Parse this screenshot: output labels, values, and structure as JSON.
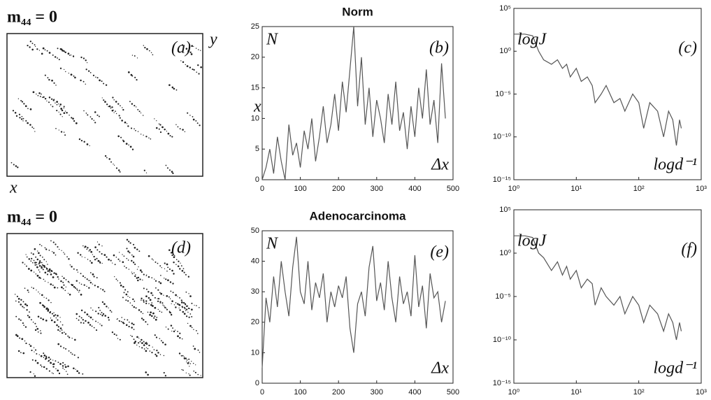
{
  "chart_data": [
    {
      "type": "image",
      "title": "m₄₄ = 0",
      "panel_label": "(a)",
      "x_label": "x",
      "y_label": "y"
    },
    {
      "type": "line",
      "title": "Norm",
      "panel_label": "(b)",
      "y_label": "N",
      "x_label": "Δx",
      "annotation": "x",
      "color": "#555555",
      "x": [
        0,
        10,
        20,
        30,
        40,
        50,
        60,
        70,
        80,
        90,
        100,
        110,
        120,
        130,
        140,
        150,
        160,
        170,
        180,
        190,
        200,
        210,
        220,
        230,
        240,
        250,
        260,
        270,
        280,
        290,
        300,
        310,
        320,
        330,
        340,
        350,
        360,
        370,
        380,
        390,
        400,
        410,
        420,
        430,
        440,
        450,
        460,
        470,
        480
      ],
      "values": [
        0,
        2,
        5,
        1,
        7,
        3,
        0,
        9,
        4,
        6,
        2,
        8,
        5,
        10,
        3,
        7,
        12,
        6,
        9,
        14,
        8,
        16,
        11,
        18,
        25,
        12,
        20,
        9,
        15,
        7,
        13,
        10,
        6,
        14,
        9,
        16,
        8,
        11,
        5,
        12,
        7,
        15,
        10,
        18,
        9,
        13,
        6,
        19,
        10
      ],
      "xlim": [
        0,
        500
      ],
      "xticks": [
        0,
        100,
        200,
        300,
        400,
        500
      ],
      "ylim": [
        0,
        25
      ],
      "yticks": [
        0,
        5,
        10,
        15,
        20,
        25
      ]
    },
    {
      "type": "line",
      "yscale": "log",
      "xscale": "log",
      "panel_label": "(c)",
      "y_label": "logJ",
      "x_label": "logd⁻¹",
      "color": "#555555",
      "x": [
        1,
        1.5,
        2,
        2.5,
        3,
        4,
        5,
        6,
        7,
        8,
        10,
        12,
        15,
        18,
        20,
        25,
        30,
        40,
        50,
        60,
        80,
        100,
        120,
        150,
        200,
        250,
        300,
        350,
        400,
        450,
        480
      ],
      "values": [
        100,
        100,
        63,
        1,
        0.1,
        0.03,
        0.1,
        0.01,
        0.03,
        0.001,
        0.01,
        0.0003,
        0.001,
        0.0001,
        1e-06,
        1e-05,
        0.0001,
        1e-06,
        3e-06,
        1e-07,
        1e-05,
        1e-06,
        1e-09,
        1e-06,
        1e-07,
        1e-10,
        1e-07,
        1e-08,
        1e-11,
        1e-08,
        1e-09
      ],
      "xlim": [
        1,
        1000
      ],
      "xticks": [
        {
          "value": 1,
          "label": "10⁰"
        },
        {
          "value": 10,
          "label": "10¹"
        },
        {
          "value": 100,
          "label": "10²"
        },
        {
          "value": 1000,
          "label": "10³"
        }
      ],
      "ylim": [
        1e-15,
        100000.0
      ],
      "yticks": [
        {
          "value": 100000.0,
          "label": "10⁵"
        },
        {
          "value": 1,
          "label": "10⁰"
        },
        {
          "value": 1e-05,
          "label": "10⁻⁵"
        },
        {
          "value": 1e-10,
          "label": "10⁻¹⁰"
        },
        {
          "value": 1e-15,
          "label": "10⁻¹⁵"
        }
      ]
    },
    {
      "type": "image",
      "title": "m₄₄ = 0",
      "panel_label": "(d)"
    },
    {
      "type": "line",
      "title": "Adenocarcinoma",
      "panel_label": "(e)",
      "y_label": "N",
      "x_label": "Δx",
      "color": "#555555",
      "x": [
        0,
        10,
        20,
        30,
        40,
        50,
        60,
        70,
        80,
        90,
        100,
        110,
        120,
        130,
        140,
        150,
        160,
        170,
        180,
        190,
        200,
        210,
        220,
        230,
        240,
        250,
        260,
        270,
        280,
        290,
        300,
        310,
        320,
        330,
        340,
        350,
        360,
        370,
        380,
        390,
        400,
        410,
        420,
        430,
        440,
        450,
        460,
        470,
        480
      ],
      "values": [
        5,
        28,
        20,
        35,
        25,
        40,
        30,
        22,
        38,
        48,
        30,
        26,
        40,
        24,
        33,
        28,
        36,
        20,
        30,
        25,
        32,
        28,
        35,
        18,
        10,
        26,
        30,
        22,
        38,
        45,
        27,
        33,
        24,
        40,
        28,
        20,
        35,
        26,
        30,
        22,
        42,
        25,
        32,
        18,
        36,
        28,
        30,
        20,
        27
      ],
      "xlim": [
        0,
        500
      ],
      "xticks": [
        0,
        100,
        200,
        300,
        400,
        500
      ],
      "ylim": [
        0,
        50
      ],
      "yticks": [
        0,
        10,
        20,
        30,
        40,
        50
      ]
    },
    {
      "type": "line",
      "yscale": "log",
      "xscale": "log",
      "panel_label": "(f)",
      "y_label": "logJ",
      "x_label": "logd⁻¹",
      "color": "#555555",
      "x": [
        1,
        1.5,
        2,
        2.5,
        3,
        4,
        5,
        6,
        7,
        8,
        10,
        12,
        15,
        18,
        20,
        25,
        30,
        40,
        50,
        60,
        80,
        100,
        120,
        150,
        200,
        250,
        300,
        350,
        400,
        450,
        480
      ],
      "values": [
        100,
        100,
        63,
        1,
        0.3,
        0.01,
        0.1,
        0.003,
        0.03,
        0.001,
        0.01,
        0.0001,
        0.001,
        0.0003,
        1e-06,
        0.0001,
        1e-05,
        1e-06,
        1e-05,
        1e-07,
        1e-05,
        1e-06,
        1e-08,
        1e-06,
        1e-07,
        1e-09,
        1e-07,
        1e-08,
        1e-10,
        1e-08,
        1e-09
      ],
      "xlim": [
        1,
        1000
      ],
      "xticks": [
        {
          "value": 1,
          "label": "10⁰"
        },
        {
          "value": 10,
          "label": "10¹"
        },
        {
          "value": 100,
          "label": "10²"
        },
        {
          "value": 1000,
          "label": "10³"
        }
      ],
      "ylim": [
        1e-15,
        100000.0
      ],
      "yticks": [
        {
          "value": 100000.0,
          "label": "10⁵"
        },
        {
          "value": 1,
          "label": "10⁰"
        },
        {
          "value": 1e-05,
          "label": "10⁻⁵"
        },
        {
          "value": 1e-10,
          "label": "10⁻¹⁰"
        },
        {
          "value": 1e-15,
          "label": "10⁻¹⁵"
        }
      ]
    }
  ]
}
